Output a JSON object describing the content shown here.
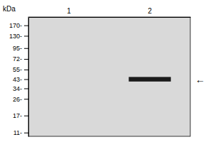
{
  "chart_data": {
    "type": "blot",
    "ylabel": "kDa",
    "categories": [
      "1",
      "2"
    ],
    "values": [
      null,
      43
    ],
    "heights": [
      null,
      5
    ],
    "color": "#1a1a1a",
    "log": "y",
    "ylim": [
      10,
      210
    ],
    "yticks": [
      {
        "value": 170,
        "label": "170-"
      },
      {
        "value": 130,
        "label": "130-"
      },
      {
        "value": 95,
        "label": "95-"
      },
      {
        "value": 72,
        "label": "72-"
      },
      {
        "value": 55,
        "label": "55-"
      },
      {
        "value": 43,
        "label": "43-"
      },
      {
        "value": 34,
        "label": "34-"
      },
      {
        "value": 26,
        "label": "26-"
      },
      {
        "value": 17,
        "label": "17-"
      },
      {
        "value": 11,
        "label": "11-"
      }
    ],
    "annotations": [
      {
        "text": "←",
        "y": 43
      }
    ],
    "grid": false
  }
}
